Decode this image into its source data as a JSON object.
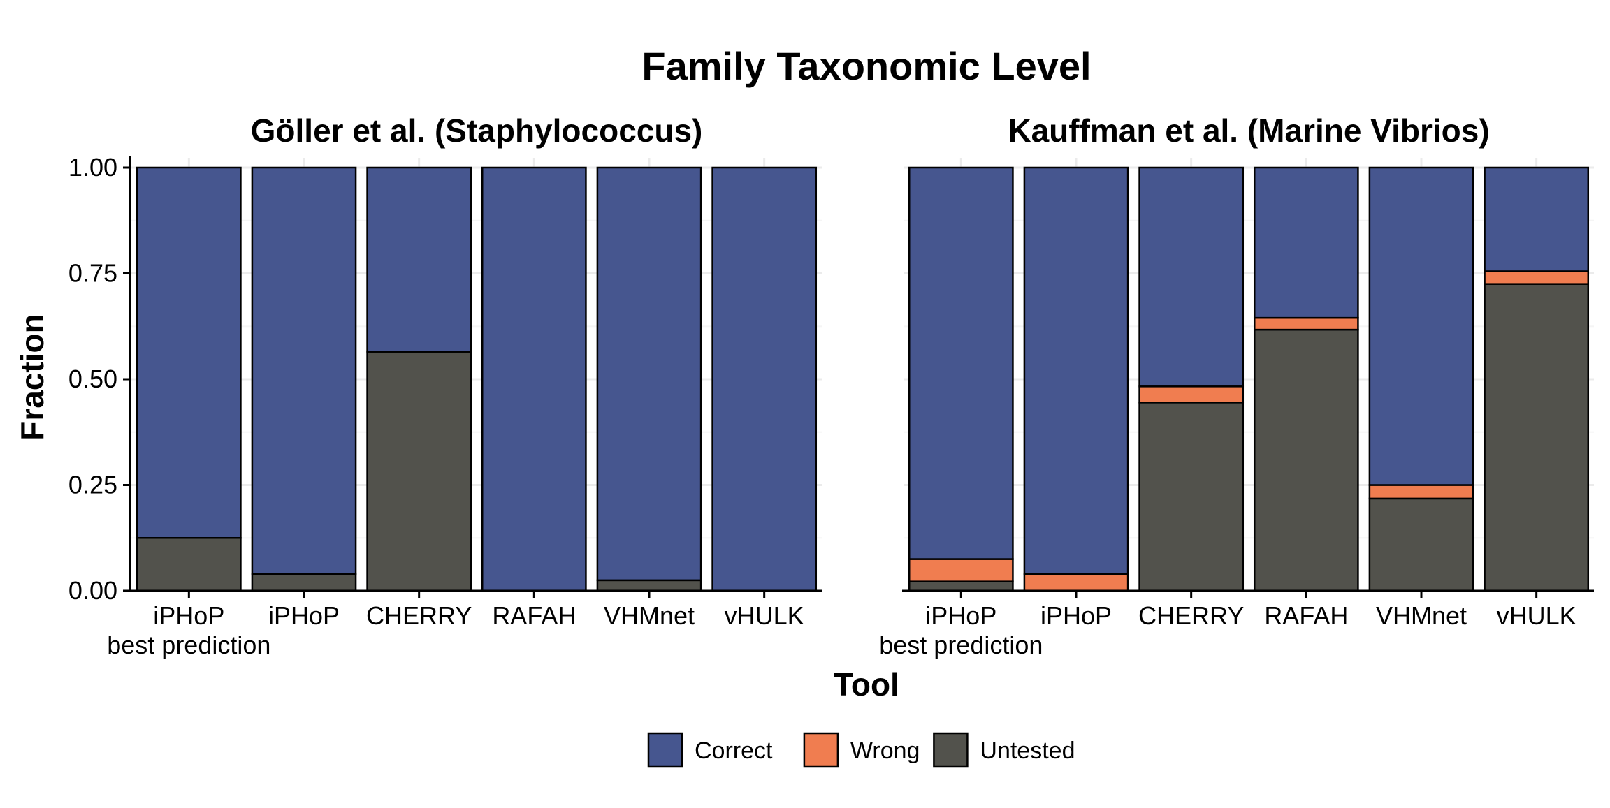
{
  "figure": {
    "title": "Family Taxonomic Level",
    "xlabel": "Tool",
    "ylabel": "Fraction"
  },
  "legend": {
    "position": "bottom",
    "items": [
      {
        "label": "Correct",
        "color": "#46568F"
      },
      {
        "label": "Wrong",
        "color": "#F07D50"
      },
      {
        "label": "Untested",
        "color": "#52524C"
      }
    ]
  },
  "chart_data": [
    {
      "type": "bar",
      "stacked": true,
      "title": "Göller et al. (Staphylococcus)",
      "categories": [
        "iPHoP\nbest prediction",
        "iPHoP",
        "CHERRY",
        "RAFAH",
        "VHMnet",
        "vHULK"
      ],
      "ylim": [
        0,
        1
      ],
      "yticks": [
        0.0,
        0.25,
        0.5,
        0.75,
        1.0
      ],
      "ytick_labels": [
        "0.00",
        "0.25",
        "0.50",
        "0.75",
        "1.00"
      ],
      "grid": true,
      "series": [
        {
          "name": "Untested",
          "values": [
            0.125,
            0.04,
            0.565,
            0.0,
            0.025,
            0.0
          ]
        },
        {
          "name": "Wrong",
          "values": [
            0.0,
            0.0,
            0.0,
            0.0,
            0.0,
            0.0
          ]
        },
        {
          "name": "Correct",
          "values": [
            0.875,
            0.96,
            0.435,
            1.0,
            0.975,
            1.0
          ]
        }
      ]
    },
    {
      "type": "bar",
      "stacked": true,
      "title": "Kauffman et al. (Marine Vibrios)",
      "categories": [
        "iPHoP\nbest prediction",
        "iPHoP",
        "CHERRY",
        "RAFAH",
        "VHMnet",
        "vHULK"
      ],
      "ylim": [
        0,
        1
      ],
      "yticks": [
        0.0,
        0.25,
        0.5,
        0.75,
        1.0
      ],
      "grid": true,
      "series": [
        {
          "name": "Untested",
          "values": [
            0.022,
            0.0,
            0.445,
            0.617,
            0.218,
            0.725
          ]
        },
        {
          "name": "Wrong",
          "values": [
            0.053,
            0.04,
            0.038,
            0.028,
            0.032,
            0.03
          ]
        },
        {
          "name": "Correct",
          "values": [
            0.925,
            0.96,
            0.517,
            0.355,
            0.75,
            0.245
          ]
        }
      ]
    }
  ]
}
